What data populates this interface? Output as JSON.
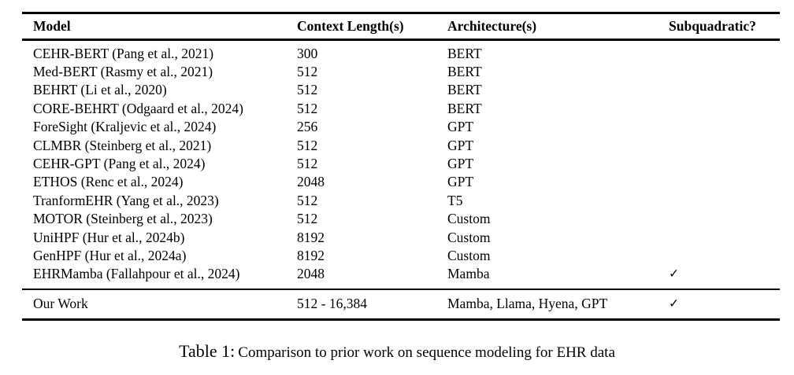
{
  "table": {
    "columns": [
      "Model",
      "Context Length(s)",
      "Architecture(s)",
      "Subquadratic?"
    ],
    "rows": [
      {
        "model": "CEHR-BERT (Pang et al., 2021)",
        "context": "300",
        "arch": "BERT",
        "check": ""
      },
      {
        "model": "Med-BERT (Rasmy et al., 2021)",
        "context": "512",
        "arch": "BERT",
        "check": ""
      },
      {
        "model": "BEHRT (Li et al., 2020)",
        "context": "512",
        "arch": "BERT",
        "check": ""
      },
      {
        "model": "CORE-BEHRT (Odgaard et al., 2024)",
        "context": "512",
        "arch": "BERT",
        "check": ""
      },
      {
        "model": "ForeSight (Kraljevic et al., 2024)",
        "context": "256",
        "arch": "GPT",
        "check": ""
      },
      {
        "model": "CLMBR (Steinberg et al., 2021)",
        "context": "512",
        "arch": "GPT",
        "check": ""
      },
      {
        "model": "CEHR-GPT (Pang et al., 2024)",
        "context": "512",
        "arch": "GPT",
        "check": ""
      },
      {
        "model": "ETHOS (Renc et al., 2024)",
        "context": "2048",
        "arch": "GPT",
        "check": ""
      },
      {
        "model": "TranformEHR (Yang et al., 2023)",
        "context": "512",
        "arch": "T5",
        "check": ""
      },
      {
        "model": "MOTOR (Steinberg et al., 2023)",
        "context": "512",
        "arch": "Custom",
        "check": ""
      },
      {
        "model": "UniHPF (Hur et al., 2024b)",
        "context": "8192",
        "arch": "Custom",
        "check": ""
      },
      {
        "model": "GenHPF (Hur et al., 2024a)",
        "context": "8192",
        "arch": "Custom",
        "check": ""
      },
      {
        "model": "EHRMamba (Fallahpour et al., 2024)",
        "context": "2048",
        "arch": "Mamba",
        "check": "✓"
      }
    ],
    "our_work": {
      "model": "Our Work",
      "context": "512 - 16,384",
      "arch": "Mamba, Llama, Hyena, GPT",
      "check": "✓"
    }
  },
  "caption": {
    "label": "Table 1:",
    "text": "Comparison to prior work on sequence modeling for EHR data"
  },
  "icons": {
    "checkmark": "✓"
  },
  "colors": {
    "text": "#000000",
    "background": "#ffffff",
    "rule": "#000000"
  }
}
